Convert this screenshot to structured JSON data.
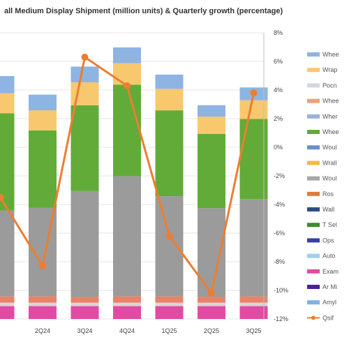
{
  "chart_data": {
    "type": "bar",
    "title": "all Medium Display Shipment (million units) & Quarterly growth (percentage)",
    "categories": [
      "",
      "2Q24",
      "3Q24",
      "4Q24",
      "1Q25",
      "2Q25",
      "3Q25"
    ],
    "bar_axis": {
      "min": 0,
      "max": 100,
      "labels_visible": false
    },
    "line_axis": {
      "min": -12,
      "max": 8,
      "tick_labels": [
        "8%",
        "6%",
        "4%",
        "2%",
        "0%",
        "-2%",
        "-4%",
        "-6%",
        "-8%",
        "-10%",
        "-12%"
      ]
    },
    "series": [
      {
        "name": "",
        "color": "#e34aa4",
        "values": [
          4.5,
          4.5,
          4.5,
          4.5,
          4.5,
          4.5,
          4.5
        ]
      },
      {
        "name": "",
        "color": "#d8d8d8",
        "values": [
          1.2,
          1.2,
          1.2,
          1.2,
          1.2,
          1.2,
          1.2
        ]
      },
      {
        "name": "",
        "color": "#e8836a",
        "values": [
          2.2,
          2.2,
          2.0,
          2.2,
          2.2,
          2.0,
          2.2
        ]
      },
      {
        "name": "",
        "color": "#9b9b9b",
        "values": [
          30,
          31,
          37,
          42,
          35,
          31,
          34
        ]
      },
      {
        "name": "",
        "color": "#62ab38",
        "values": [
          34,
          27,
          30,
          32,
          30,
          26,
          28
        ]
      },
      {
        "name": "",
        "color": "#f8c86e",
        "values": [
          7,
          7,
          8,
          7.5,
          7.5,
          6,
          6.5
        ]
      },
      {
        "name": "",
        "color": "#8eb4e3",
        "values": [
          6,
          5.5,
          5.5,
          5.5,
          5,
          4,
          4.5
        ]
      }
    ],
    "line": {
      "name": "",
      "color": "#ed7d31",
      "values": [
        -3.5,
        -8.3,
        6.3,
        4.3,
        -6.2,
        -10.2,
        3.8
      ]
    },
    "legend": {
      "placement": "right",
      "entries": [
        {
          "label": "Whee",
          "color": "#8eb4e3",
          "marker": "box"
        },
        {
          "label": "Wrap",
          "color": "#f8c86e",
          "marker": "box"
        },
        {
          "label": "Pocn",
          "color": "#d0d7e0",
          "marker": "box"
        },
        {
          "label": "Whee",
          "color": "#e8a47a",
          "marker": "box"
        },
        {
          "label": "Wher",
          "color": "#9bb1d8",
          "marker": "box"
        },
        {
          "label": "Whee",
          "color": "#62ab38",
          "marker": "box"
        },
        {
          "label": "Woul",
          "color": "#6a8fc8",
          "marker": "box"
        },
        {
          "label": "Wrall",
          "color": "#f5b942",
          "marker": "box"
        },
        {
          "label": "Woul",
          "color": "#a7a7a7",
          "marker": "box"
        },
        {
          "label": "Ros",
          "color": "#e07b39",
          "marker": "box"
        },
        {
          "label": "Wall",
          "color": "#2d4e8c",
          "marker": "box"
        },
        {
          "label": "T Sel",
          "color": "#3d8b2f",
          "marker": "box"
        },
        {
          "label": "Ops",
          "color": "#3a3fa5",
          "marker": "box"
        },
        {
          "label": "Auto",
          "color": "#9fd1e6",
          "marker": "box"
        },
        {
          "label": "Exam",
          "color": "#e34aa4",
          "marker": "box"
        },
        {
          "label": "Ar Mi",
          "color": "#4a1fa0",
          "marker": "box"
        },
        {
          "label": "Amyl",
          "color": "#7fb2e6",
          "marker": "box"
        },
        {
          "label": "Qsif",
          "color": "#ed7d31",
          "marker": "line"
        }
      ]
    }
  }
}
